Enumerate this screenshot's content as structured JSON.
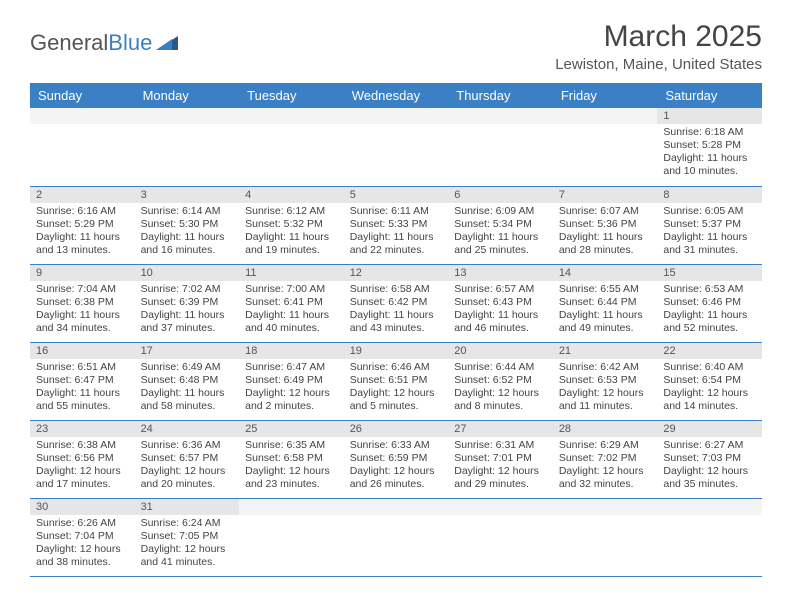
{
  "logo": {
    "text1": "General",
    "text2": "Blue"
  },
  "title": {
    "month": "March 2025",
    "location": "Lewiston, Maine, United States"
  },
  "colors": {
    "header_bg": "#3b7fc4",
    "header_text": "#ffffff",
    "daynum_bg": "#e6e6e6",
    "border": "#3b7fc4",
    "body_bg": "#ffffff",
    "text": "#444444"
  },
  "day_headers": [
    "Sunday",
    "Monday",
    "Tuesday",
    "Wednesday",
    "Thursday",
    "Friday",
    "Saturday"
  ],
  "weeks": [
    [
      null,
      null,
      null,
      null,
      null,
      null,
      {
        "n": "1",
        "sr": "Sunrise: 6:18 AM",
        "ss": "Sunset: 5:28 PM",
        "dl": "Daylight: 11 hours and 10 minutes."
      }
    ],
    [
      {
        "n": "2",
        "sr": "Sunrise: 6:16 AM",
        "ss": "Sunset: 5:29 PM",
        "dl": "Daylight: 11 hours and 13 minutes."
      },
      {
        "n": "3",
        "sr": "Sunrise: 6:14 AM",
        "ss": "Sunset: 5:30 PM",
        "dl": "Daylight: 11 hours and 16 minutes."
      },
      {
        "n": "4",
        "sr": "Sunrise: 6:12 AM",
        "ss": "Sunset: 5:32 PM",
        "dl": "Daylight: 11 hours and 19 minutes."
      },
      {
        "n": "5",
        "sr": "Sunrise: 6:11 AM",
        "ss": "Sunset: 5:33 PM",
        "dl": "Daylight: 11 hours and 22 minutes."
      },
      {
        "n": "6",
        "sr": "Sunrise: 6:09 AM",
        "ss": "Sunset: 5:34 PM",
        "dl": "Daylight: 11 hours and 25 minutes."
      },
      {
        "n": "7",
        "sr": "Sunrise: 6:07 AM",
        "ss": "Sunset: 5:36 PM",
        "dl": "Daylight: 11 hours and 28 minutes."
      },
      {
        "n": "8",
        "sr": "Sunrise: 6:05 AM",
        "ss": "Sunset: 5:37 PM",
        "dl": "Daylight: 11 hours and 31 minutes."
      }
    ],
    [
      {
        "n": "9",
        "sr": "Sunrise: 7:04 AM",
        "ss": "Sunset: 6:38 PM",
        "dl": "Daylight: 11 hours and 34 minutes."
      },
      {
        "n": "10",
        "sr": "Sunrise: 7:02 AM",
        "ss": "Sunset: 6:39 PM",
        "dl": "Daylight: 11 hours and 37 minutes."
      },
      {
        "n": "11",
        "sr": "Sunrise: 7:00 AM",
        "ss": "Sunset: 6:41 PM",
        "dl": "Daylight: 11 hours and 40 minutes."
      },
      {
        "n": "12",
        "sr": "Sunrise: 6:58 AM",
        "ss": "Sunset: 6:42 PM",
        "dl": "Daylight: 11 hours and 43 minutes."
      },
      {
        "n": "13",
        "sr": "Sunrise: 6:57 AM",
        "ss": "Sunset: 6:43 PM",
        "dl": "Daylight: 11 hours and 46 minutes."
      },
      {
        "n": "14",
        "sr": "Sunrise: 6:55 AM",
        "ss": "Sunset: 6:44 PM",
        "dl": "Daylight: 11 hours and 49 minutes."
      },
      {
        "n": "15",
        "sr": "Sunrise: 6:53 AM",
        "ss": "Sunset: 6:46 PM",
        "dl": "Daylight: 11 hours and 52 minutes."
      }
    ],
    [
      {
        "n": "16",
        "sr": "Sunrise: 6:51 AM",
        "ss": "Sunset: 6:47 PM",
        "dl": "Daylight: 11 hours and 55 minutes."
      },
      {
        "n": "17",
        "sr": "Sunrise: 6:49 AM",
        "ss": "Sunset: 6:48 PM",
        "dl": "Daylight: 11 hours and 58 minutes."
      },
      {
        "n": "18",
        "sr": "Sunrise: 6:47 AM",
        "ss": "Sunset: 6:49 PM",
        "dl": "Daylight: 12 hours and 2 minutes."
      },
      {
        "n": "19",
        "sr": "Sunrise: 6:46 AM",
        "ss": "Sunset: 6:51 PM",
        "dl": "Daylight: 12 hours and 5 minutes."
      },
      {
        "n": "20",
        "sr": "Sunrise: 6:44 AM",
        "ss": "Sunset: 6:52 PM",
        "dl": "Daylight: 12 hours and 8 minutes."
      },
      {
        "n": "21",
        "sr": "Sunrise: 6:42 AM",
        "ss": "Sunset: 6:53 PM",
        "dl": "Daylight: 12 hours and 11 minutes."
      },
      {
        "n": "22",
        "sr": "Sunrise: 6:40 AM",
        "ss": "Sunset: 6:54 PM",
        "dl": "Daylight: 12 hours and 14 minutes."
      }
    ],
    [
      {
        "n": "23",
        "sr": "Sunrise: 6:38 AM",
        "ss": "Sunset: 6:56 PM",
        "dl": "Daylight: 12 hours and 17 minutes."
      },
      {
        "n": "24",
        "sr": "Sunrise: 6:36 AM",
        "ss": "Sunset: 6:57 PM",
        "dl": "Daylight: 12 hours and 20 minutes."
      },
      {
        "n": "25",
        "sr": "Sunrise: 6:35 AM",
        "ss": "Sunset: 6:58 PM",
        "dl": "Daylight: 12 hours and 23 minutes."
      },
      {
        "n": "26",
        "sr": "Sunrise: 6:33 AM",
        "ss": "Sunset: 6:59 PM",
        "dl": "Daylight: 12 hours and 26 minutes."
      },
      {
        "n": "27",
        "sr": "Sunrise: 6:31 AM",
        "ss": "Sunset: 7:01 PM",
        "dl": "Daylight: 12 hours and 29 minutes."
      },
      {
        "n": "28",
        "sr": "Sunrise: 6:29 AM",
        "ss": "Sunset: 7:02 PM",
        "dl": "Daylight: 12 hours and 32 minutes."
      },
      {
        "n": "29",
        "sr": "Sunrise: 6:27 AM",
        "ss": "Sunset: 7:03 PM",
        "dl": "Daylight: 12 hours and 35 minutes."
      }
    ],
    [
      {
        "n": "30",
        "sr": "Sunrise: 6:26 AM",
        "ss": "Sunset: 7:04 PM",
        "dl": "Daylight: 12 hours and 38 minutes."
      },
      {
        "n": "31",
        "sr": "Sunrise: 6:24 AM",
        "ss": "Sunset: 7:05 PM",
        "dl": "Daylight: 12 hours and 41 minutes."
      },
      null,
      null,
      null,
      null,
      null
    ]
  ]
}
